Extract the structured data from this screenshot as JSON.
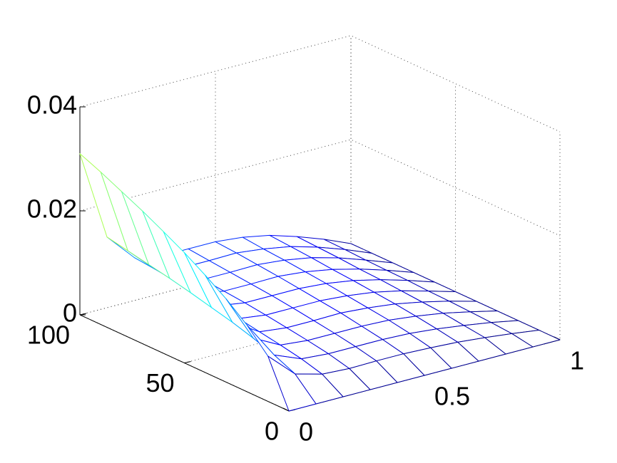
{
  "chart_data": {
    "type": "mesh",
    "x": [
      0,
      0.1,
      0.2,
      0.3,
      0.4,
      0.5,
      0.6,
      0.7,
      0.8,
      0.9,
      1
    ],
    "y": [
      0,
      10,
      20,
      30,
      40,
      50,
      60,
      70,
      80,
      90,
      100
    ],
    "z": [
      [
        0,
        0,
        0,
        0,
        0,
        0,
        0,
        0,
        0,
        0,
        0
      ],
      [
        0.0087,
        0.0039,
        0.0025,
        0.0022,
        0.0023,
        0.0023,
        0.0021,
        0.0018,
        0.0013,
        0.0007,
        0
      ],
      [
        0.0128,
        0.0057,
        0.0036,
        0.0032,
        0.0032,
        0.0032,
        0.003,
        0.0025,
        0.0018,
        0.001,
        0
      ],
      [
        0.016,
        0.0071,
        0.0044,
        0.0039,
        0.0039,
        0.0039,
        0.0037,
        0.0031,
        0.0023,
        0.0012,
        0
      ],
      [
        0.0187,
        0.0083,
        0.0051,
        0.0045,
        0.0045,
        0.0046,
        0.0042,
        0.0036,
        0.0026,
        0.0014,
        0
      ],
      [
        0.0212,
        0.0093,
        0.0058,
        0.0051,
        0.0051,
        0.0051,
        0.0047,
        0.004,
        0.0029,
        0.0015,
        0
      ],
      [
        0.0234,
        0.0103,
        0.0064,
        0.0056,
        0.0056,
        0.0056,
        0.0052,
        0.0044,
        0.0032,
        0.0017,
        0
      ],
      [
        0.0255,
        0.0112,
        0.0069,
        0.006,
        0.006,
        0.0061,
        0.0056,
        0.0047,
        0.0034,
        0.0018,
        0
      ],
      [
        0.0274,
        0.012,
        0.0074,
        0.0064,
        0.0064,
        0.0065,
        0.006,
        0.0051,
        0.0037,
        0.0019,
        0
      ],
      [
        0.0293,
        0.0128,
        0.0079,
        0.0068,
        0.0068,
        0.0069,
        0.0063,
        0.0054,
        0.0039,
        0.0021,
        0
      ],
      [
        0.031,
        0.0136,
        0.0083,
        0.0072,
        0.0072,
        0.0072,
        0.0067,
        0.0057,
        0.0041,
        0.0022,
        0
      ]
    ],
    "xlim": [
      0,
      1
    ],
    "ylim": [
      0,
      100
    ],
    "zlim": [
      0,
      0.04
    ],
    "xticks": [
      0,
      0.5,
      1
    ],
    "yticks": [
      0,
      50,
      100
    ],
    "zticks": [
      0,
      {
        "value": 0.02,
        "label": "0.02"
      },
      {
        "value": 0.04,
        "label": "0.04"
      }
    ],
    "grid": true,
    "colormap": "jet"
  }
}
